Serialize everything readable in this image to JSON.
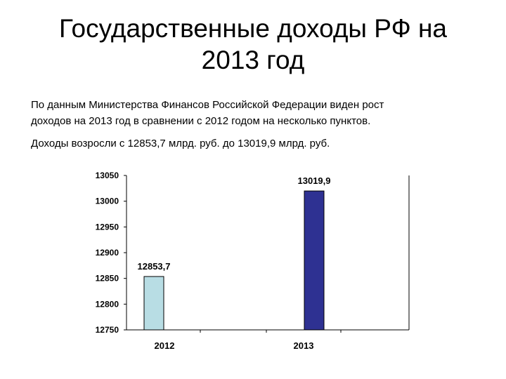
{
  "slide": {
    "title_line1": "Государственные доходы РФ на",
    "title_line2": "2013 год",
    "paragraph1_line1": "По данным Министерства Финансов Российской Федерации виден рост",
    "paragraph1_line2": "доходов на 2013 год в сравнении с 2012 годом на несколько пунктов.",
    "paragraph2": "Доходы возросли с 12853,7 млрд. руб. до 13019,9 млрд. руб."
  },
  "chart_data": {
    "type": "bar",
    "categories": [
      "2012",
      "2013"
    ],
    "values": [
      12853.7,
      13019.9
    ],
    "data_labels": [
      "12853,7",
      "13019,9"
    ],
    "bar_colors": [
      "#b8dde4",
      "#2e3192"
    ],
    "title": "",
    "xlabel": "",
    "ylabel": "",
    "ylim": [
      12750,
      13050
    ],
    "yticks": [
      12750,
      12800,
      12850,
      12900,
      12950,
      13000,
      13050
    ],
    "grid": false,
    "legend": "none"
  }
}
